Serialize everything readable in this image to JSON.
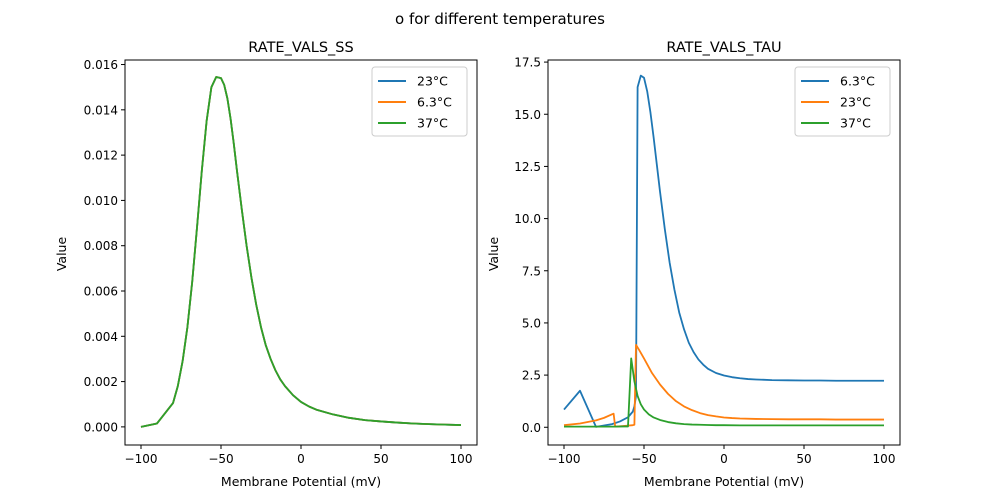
{
  "figure": {
    "suptitle": "o for different temperatures"
  },
  "chart_data": [
    {
      "type": "line",
      "title": "RATE_VALS_SS",
      "xlabel": "Membrane Potential (mV)",
      "ylabel": "Value",
      "xlim": [
        -110,
        110
      ],
      "ylim": [
        -0.0008,
        0.0162
      ],
      "xticks": [
        -100,
        -50,
        0,
        50,
        100
      ],
      "xtick_labels": [
        "−100",
        "−50",
        "0",
        "50",
        "100"
      ],
      "yticks": [
        0,
        0.002,
        0.004,
        0.006,
        0.008,
        0.01,
        0.012,
        0.014,
        0.016
      ],
      "ytick_labels": [
        "0.000",
        "0.002",
        "0.004",
        "0.006",
        "0.008",
        "0.010",
        "0.012",
        "0.014",
        "0.016"
      ],
      "grid": false,
      "legend_position": "upper-right",
      "series": [
        {
          "name": "23°C",
          "color": "#1f77b4",
          "x": [
            -100,
            -90,
            -80,
            -77,
            -74,
            -71,
            -68,
            -65,
            -62,
            -59,
            -56,
            -53,
            -50,
            -48,
            -46,
            -44,
            -42,
            -40,
            -37,
            -34,
            -31,
            -28,
            -25,
            -22,
            -19,
            -16,
            -13,
            -10,
            -5,
            0,
            5,
            10,
            20,
            30,
            40,
            50,
            60,
            70,
            80,
            90,
            100
          ],
          "y": [
            0.0,
            0.00015,
            0.00105,
            0.0018,
            0.0029,
            0.0044,
            0.0064,
            0.0088,
            0.0113,
            0.0135,
            0.015,
            0.01545,
            0.0154,
            0.0151,
            0.0145,
            0.0136,
            0.0125,
            0.0113,
            0.0096,
            0.008,
            0.0066,
            0.0054,
            0.0044,
            0.0036,
            0.003,
            0.0025,
            0.0021,
            0.0018,
            0.0014,
            0.0011,
            0.0009,
            0.00075,
            0.00055,
            0.0004,
            0.0003,
            0.00024,
            0.00019,
            0.00015,
            0.00012,
            0.0001,
            8e-05
          ]
        },
        {
          "name": "6.3°C",
          "color": "#ff7f0e",
          "x": [
            -100,
            -90,
            -80,
            -77,
            -74,
            -71,
            -68,
            -65,
            -62,
            -59,
            -56,
            -53,
            -50,
            -48,
            -46,
            -44,
            -42,
            -40,
            -37,
            -34,
            -31,
            -28,
            -25,
            -22,
            -19,
            -16,
            -13,
            -10,
            -5,
            0,
            5,
            10,
            20,
            30,
            40,
            50,
            60,
            70,
            80,
            90,
            100
          ],
          "y": [
            0.0,
            0.00015,
            0.00105,
            0.0018,
            0.0029,
            0.0044,
            0.0064,
            0.0088,
            0.0113,
            0.0135,
            0.015,
            0.01545,
            0.0154,
            0.0151,
            0.0145,
            0.0136,
            0.0125,
            0.0113,
            0.0096,
            0.008,
            0.0066,
            0.0054,
            0.0044,
            0.0036,
            0.003,
            0.0025,
            0.0021,
            0.0018,
            0.0014,
            0.0011,
            0.0009,
            0.00075,
            0.00055,
            0.0004,
            0.0003,
            0.00024,
            0.00019,
            0.00015,
            0.00012,
            0.0001,
            8e-05
          ]
        },
        {
          "name": "37°C",
          "color": "#2ca02c",
          "x": [
            -100,
            -90,
            -80,
            -77,
            -74,
            -71,
            -68,
            -65,
            -62,
            -59,
            -56,
            -53,
            -50,
            -48,
            -46,
            -44,
            -42,
            -40,
            -37,
            -34,
            -31,
            -28,
            -25,
            -22,
            -19,
            -16,
            -13,
            -10,
            -5,
            0,
            5,
            10,
            20,
            30,
            40,
            50,
            60,
            70,
            80,
            90,
            100
          ],
          "y": [
            0.0,
            0.00015,
            0.00105,
            0.0018,
            0.0029,
            0.0044,
            0.0064,
            0.0088,
            0.0113,
            0.0135,
            0.015,
            0.01545,
            0.0154,
            0.0151,
            0.0145,
            0.0136,
            0.0125,
            0.0113,
            0.0096,
            0.008,
            0.0066,
            0.0054,
            0.0044,
            0.0036,
            0.003,
            0.0025,
            0.0021,
            0.0018,
            0.0014,
            0.0011,
            0.0009,
            0.00075,
            0.00055,
            0.0004,
            0.0003,
            0.00024,
            0.00019,
            0.00015,
            0.00012,
            0.0001,
            8e-05
          ]
        }
      ]
    },
    {
      "type": "line",
      "title": "RATE_VALS_TAU",
      "xlabel": "Membrane Potential (mV)",
      "ylabel": "Value",
      "xlim": [
        -110,
        110
      ],
      "ylim": [
        -0.85,
        17.6
      ],
      "xticks": [
        -100,
        -50,
        0,
        50,
        100
      ],
      "xtick_labels": [
        "−100",
        "−50",
        "0",
        "50",
        "100"
      ],
      "yticks": [
        0,
        2.5,
        5,
        7.5,
        10,
        12.5,
        15,
        17.5
      ],
      "ytick_labels": [
        "0.0",
        "2.5",
        "5.0",
        "7.5",
        "10.0",
        "12.5",
        "15.0",
        "17.5"
      ],
      "grid": false,
      "legend_position": "upper-right",
      "series": [
        {
          "name": "6.3°C",
          "color": "#1f77b4",
          "x": [
            -100,
            -90,
            -80,
            -70,
            -65,
            -60,
            -57,
            -56,
            -55,
            -54,
            -52,
            -50,
            -48,
            -46,
            -44,
            -42,
            -40,
            -37,
            -34,
            -31,
            -28,
            -25,
            -22,
            -19,
            -16,
            -13,
            -10,
            -5,
            0,
            5,
            10,
            15,
            20,
            30,
            40,
            50,
            60,
            70,
            80,
            90,
            100
          ],
          "y": [
            0.85,
            1.75,
            0.02,
            0.15,
            0.28,
            0.48,
            0.75,
            1.0,
            1.5,
            16.3,
            16.85,
            16.75,
            16.1,
            15.1,
            13.9,
            12.6,
            11.3,
            9.5,
            7.9,
            6.6,
            5.5,
            4.7,
            4.05,
            3.6,
            3.25,
            3.0,
            2.8,
            2.6,
            2.48,
            2.4,
            2.35,
            2.31,
            2.29,
            2.26,
            2.25,
            2.24,
            2.24,
            2.23,
            2.23,
            2.23,
            2.23
          ]
        },
        {
          "name": "23°C",
          "color": "#ff7f0e",
          "x": [
            -100,
            -90,
            -80,
            -75,
            -70,
            -69,
            -68,
            -60,
            -57,
            -56,
            -55,
            -53,
            -50,
            -45,
            -40,
            -35,
            -30,
            -25,
            -20,
            -15,
            -10,
            -5,
            0,
            5,
            10,
            20,
            30,
            40,
            50,
            60,
            70,
            80,
            90,
            100
          ],
          "y": [
            0.1,
            0.18,
            0.33,
            0.45,
            0.62,
            0.65,
            0.03,
            0.08,
            0.1,
            0.12,
            3.95,
            3.7,
            3.3,
            2.6,
            2.05,
            1.6,
            1.25,
            1.0,
            0.82,
            0.68,
            0.58,
            0.52,
            0.47,
            0.44,
            0.42,
            0.4,
            0.39,
            0.38,
            0.38,
            0.38,
            0.37,
            0.37,
            0.37,
            0.37
          ]
        },
        {
          "name": "37°C",
          "color": "#2ca02c",
          "x": [
            -100,
            -90,
            -80,
            -70,
            -62,
            -60,
            -58,
            -56,
            -54,
            -52,
            -50,
            -47,
            -44,
            -40,
            -35,
            -30,
            -25,
            -20,
            -15,
            -10,
            -5,
            0,
            10,
            20,
            30,
            40,
            50,
            60,
            70,
            80,
            90,
            100
          ],
          "y": [
            0.03,
            0.03,
            0.03,
            0.03,
            0.04,
            0.04,
            3.3,
            2.2,
            1.5,
            1.1,
            0.85,
            0.62,
            0.47,
            0.35,
            0.25,
            0.19,
            0.15,
            0.13,
            0.12,
            0.11,
            0.1,
            0.1,
            0.09,
            0.09,
            0.09,
            0.09,
            0.09,
            0.09,
            0.09,
            0.09,
            0.09,
            0.09
          ]
        }
      ]
    }
  ]
}
